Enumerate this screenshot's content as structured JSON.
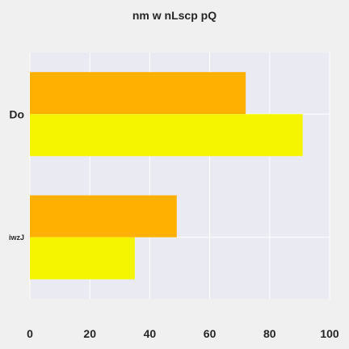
{
  "chart_data": {
    "type": "bar",
    "orientation": "horizontal",
    "title": "nm w  nLscp pQ",
    "xlabel": "",
    "ylabel": "",
    "categories": [
      "Do",
      "iwzJ"
    ],
    "series": [
      {
        "values": [
          72,
          49
        ],
        "color": "#FFB000"
      },
      {
        "values": [
          91,
          35
        ],
        "color": "#F5F500"
      }
    ],
    "xlim": [
      0,
      100
    ],
    "xticks": [
      "0",
      "20",
      "40",
      "60",
      "80",
      "100"
    ],
    "grid": true,
    "legend": "none",
    "colors": {
      "plot_background": "#EAEAF2",
      "page_background": "#F0F0F0",
      "grid": "#FFFFFF"
    }
  }
}
